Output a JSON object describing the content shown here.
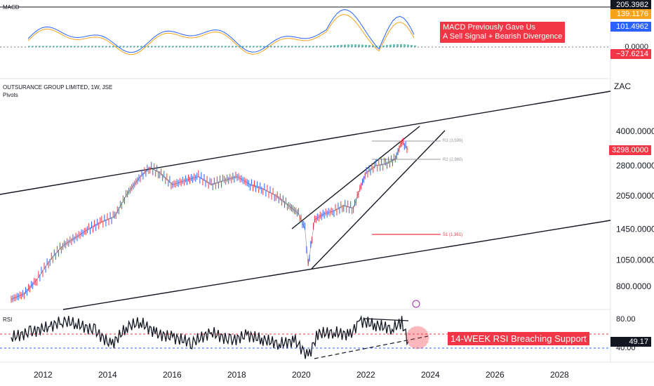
{
  "macd_panel": {
    "label": "MACD",
    "tags": {
      "top": "205.3982",
      "macd": "139.1176",
      "signal": "101.4962",
      "zero": "0.0000",
      "hist": "−37.6214"
    },
    "annotation": [
      "MACD Previously Gave Us",
      "A Sell Signal + Bearish Divergence"
    ]
  },
  "price_panel": {
    "symbol_line": "OUTSURANCE GROUP LIMITED, 1W, JSE",
    "indicator": "Pivots",
    "currency": "ZAC",
    "last_price": "3298.0000",
    "pivot_labels": {
      "r3": "R3 (3,599)",
      "r2": "R2 (2,980)",
      "s1": "S1 (1,361)"
    }
  },
  "rsi_panel": {
    "label": "RSI",
    "value": "49.17",
    "top_tick": "80.00",
    "bottom_tick": "40.00",
    "annotation": "14-WEEK RSI Breaching Support"
  },
  "chart_data": {
    "type": "line",
    "title": "",
    "y_scale": "log",
    "y_ticks": [
      "4000.0000",
      "2800.0000",
      "2050.0000",
      "1450.0000",
      "1050.0000",
      "800.0000"
    ],
    "x_ticks": [
      "2012",
      "2014",
      "2016",
      "2018",
      "2020",
      "2022",
      "2024",
      "2026",
      "2028"
    ],
    "series": [
      {
        "x": [
          2011.0,
          2011.4,
          2011.8,
          2012.2,
          2012.6,
          2013.0,
          2013.4,
          2013.8,
          2014.2,
          2014.6,
          2015.0,
          2015.3,
          2015.6,
          2016.0,
          2016.4,
          2016.8,
          2017.2,
          2017.6,
          2018.0,
          2018.4,
          2018.8,
          2019.2,
          2019.6,
          2019.9,
          2020.1,
          2020.2,
          2020.4,
          2020.7,
          2021.0,
          2021.3,
          2021.6,
          2021.8,
          2022.0,
          2022.3,
          2022.6,
          2022.9,
          2023.1,
          2023.3
        ],
        "y": [
          700,
          740,
          860,
          1050,
          1220,
          1330,
          1450,
          1560,
          1650,
          2100,
          2500,
          2750,
          2600,
          2300,
          2400,
          2500,
          2300,
          2400,
          2500,
          2300,
          2200,
          2050,
          1850,
          1700,
          1450,
          1000,
          1600,
          1700,
          1750,
          1850,
          1800,
          2200,
          2600,
          2800,
          2850,
          3000,
          3599,
          3298
        ]
      }
    ],
    "rsi": {
      "x": [
        2011.0,
        2011.6,
        2012.2,
        2012.6,
        2013.0,
        2013.6,
        2014.1,
        2014.6,
        2015.0,
        2015.5,
        2016.0,
        2016.6,
        2017.2,
        2017.8,
        2018.3,
        2018.8,
        2019.3,
        2019.8,
        2020.2,
        2020.5,
        2021.0,
        2021.5,
        2021.8,
        2022.3,
        2022.8,
        2023.1,
        2023.3
      ],
      "y": [
        55,
        62,
        70,
        78,
        74,
        64,
        44,
        70,
        76,
        60,
        55,
        48,
        62,
        50,
        58,
        52,
        46,
        50,
        28,
        60,
        62,
        58,
        78,
        72,
        67,
        76,
        49
      ]
    }
  }
}
